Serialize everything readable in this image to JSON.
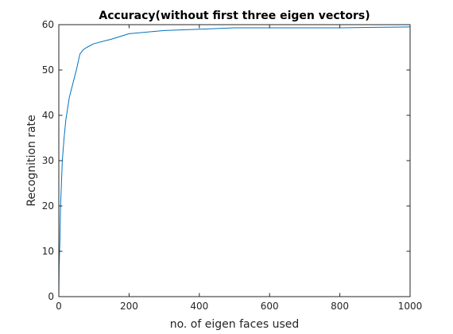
{
  "chart_data": {
    "type": "line",
    "title": "Accuracy(without first three eigen vectors)",
    "xlabel": "no. of eigen faces used",
    "ylabel": "Recognition rate",
    "xlim": [
      0,
      1000
    ],
    "ylim": [
      0,
      60
    ],
    "xticks": [
      0,
      200,
      400,
      600,
      800,
      1000
    ],
    "yticks": [
      0,
      10,
      20,
      30,
      40,
      50,
      60
    ],
    "grid": false,
    "line_color": "#0072bd",
    "series": [
      {
        "x": [
          0,
          1,
          3,
          5,
          10,
          15,
          20,
          30,
          40,
          50,
          60,
          70,
          80,
          100,
          150,
          200,
          300,
          400,
          500,
          600,
          700,
          800,
          900,
          1000
        ],
        "y": [
          0,
          7,
          12,
          20,
          30,
          35,
          39,
          44,
          47,
          50,
          53.5,
          54.5,
          55,
          55.8,
          56.8,
          58.0,
          58.7,
          59.0,
          59.3,
          59.3,
          59.3,
          59.3,
          59.4,
          59.5
        ]
      }
    ]
  }
}
